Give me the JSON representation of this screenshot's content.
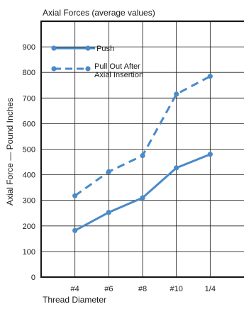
{
  "chart_data": {
    "type": "line",
    "title": "Axial Forces (average values)",
    "xlabel": "Thread Diameter",
    "ylabel": "Axial Force — Pound Inches",
    "categories": [
      "#4",
      "#6",
      "#8",
      "#10",
      "1/4"
    ],
    "ylim": [
      0,
      1000
    ],
    "yticks": [
      0,
      100,
      200,
      300,
      400,
      500,
      600,
      700,
      800,
      900
    ],
    "grid": true,
    "legend_position": "top-left",
    "series": [
      {
        "name": "Push",
        "style": "solid",
        "color": "#4a8ac8",
        "values": [
          182,
          253,
          310,
          427,
          480
        ]
      },
      {
        "name": "Pull Out After Axial Insertion",
        "style": "dashed",
        "color": "#4a8ac8",
        "values": [
          318,
          412,
          475,
          715,
          785
        ]
      }
    ]
  }
}
